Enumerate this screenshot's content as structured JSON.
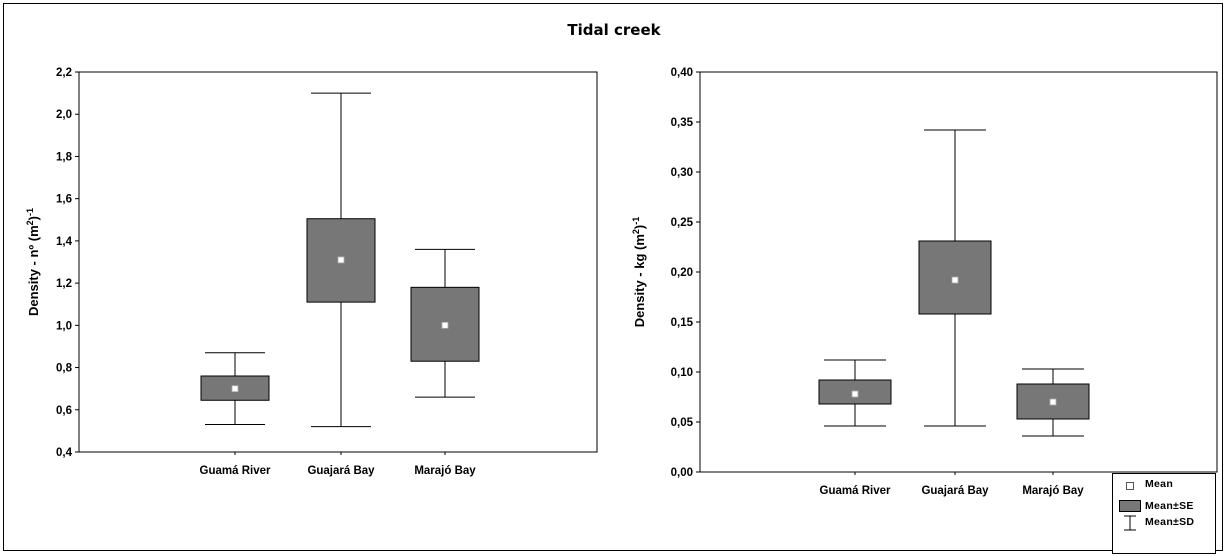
{
  "page_title": "Tidal creek",
  "chart_data": [
    {
      "type": "boxplot",
      "ylabel": "Density - nº (m²)⁻¹",
      "ylabel_main": "Density - nº (m",
      "ylabel_sup1": "2",
      "ylabel_mid": ")",
      "ylabel_sup2": "-1",
      "ylim": [
        0.4,
        2.2
      ],
      "yticks": [
        "0,4",
        "0,6",
        "0,8",
        "1,0",
        "1,2",
        "1,4",
        "1,6",
        "1,8",
        "2,0",
        "2,2"
      ],
      "ytick_values": [
        0.4,
        0.6,
        0.8,
        1.0,
        1.2,
        1.4,
        1.6,
        1.8,
        2.0,
        2.2
      ],
      "categories": [
        "Guamá River",
        "Guajará Bay",
        "Marajó Bay"
      ],
      "mean": [
        0.7,
        1.31,
        1.0
      ],
      "se_low": [
        0.645,
        1.11,
        0.83
      ],
      "se_high": [
        0.76,
        1.505,
        1.18
      ],
      "sd_low": [
        0.53,
        0.52,
        0.66
      ],
      "sd_high": [
        0.87,
        2.1,
        1.36
      ]
    },
    {
      "type": "boxplot",
      "ylabel": "Density - kg (m²)⁻¹",
      "ylabel_main": "Density - kg (m",
      "ylabel_sup1": "2",
      "ylabel_mid": ")",
      "ylabel_sup2": "-1",
      "ylim": [
        0.0,
        0.4
      ],
      "yticks": [
        "0,00",
        "0,05",
        "0,10",
        "0,15",
        "0,20",
        "0,25",
        "0,30",
        "0,35",
        "0,40"
      ],
      "ytick_values": [
        0.0,
        0.05,
        0.1,
        0.15,
        0.2,
        0.25,
        0.3,
        0.35,
        0.4
      ],
      "categories": [
        "Guamá River",
        "Guajará Bay",
        "Marajó Bay"
      ],
      "mean": [
        0.078,
        0.192,
        0.07
      ],
      "se_low": [
        0.068,
        0.158,
        0.053
      ],
      "se_high": [
        0.092,
        0.231,
        0.088
      ],
      "sd_low": [
        0.046,
        0.046,
        0.036
      ],
      "sd_high": [
        0.112,
        0.342,
        0.103
      ]
    }
  ],
  "legend": {
    "mean_label": "Mean",
    "se_label": "Mean±SE",
    "sd_label": "Mean±SD"
  },
  "colors": {
    "box_fill": "#777777",
    "mean_marker": "#ffffff",
    "axis": "#000000"
  }
}
